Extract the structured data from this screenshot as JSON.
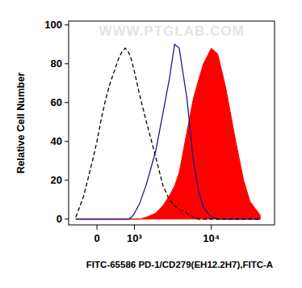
{
  "chart_data": {
    "type": "area",
    "xlabel": "FITC-65586 PD-1/CD279(EH12.2H7),FITC-A",
    "ylabel": "Relative Cell Number",
    "annotation": "WWW.PTGLAB.COM",
    "log": "x",
    "xlim": [
      -700,
      60000
    ],
    "ylim": [
      -3,
      102
    ],
    "xticks": [
      0,
      {
        "value": 1000,
        "label": "10³"
      },
      {
        "value": 10000,
        "label": "10⁴"
      }
    ],
    "yticks": [
      0,
      20,
      40,
      60,
      80,
      100
    ],
    "x": [
      -500,
      -300,
      -100,
      0,
      100,
      200,
      300,
      400,
      500,
      600,
      700,
      800,
      900,
      1000,
      1200,
      1500,
      2000,
      2500,
      3000,
      3500,
      4000,
      5000,
      6000,
      7000,
      8000,
      10000,
      12000,
      15000,
      20000,
      25000,
      30000,
      40000
    ],
    "series": [
      {
        "type": "area",
        "color": "#ff0000",
        "values": [
          0,
          0,
          0,
          0,
          0,
          0,
          0,
          0,
          0,
          0,
          0,
          0,
          0,
          0,
          0,
          1,
          3,
          7,
          12,
          17,
          24,
          45,
          62,
          72,
          80,
          88,
          85,
          68,
          40,
          20,
          9,
          2
        ]
      },
      {
        "type": "line",
        "color": "#1a1a8c",
        "line_style": "solid",
        "values": [
          0,
          0,
          0,
          0,
          0,
          0,
          0,
          0,
          0,
          0,
          0,
          0,
          1,
          3,
          8,
          18,
          35,
          55,
          72,
          90,
          88,
          62,
          30,
          14,
          6,
          1,
          0,
          0,
          0,
          0,
          0,
          0
        ]
      },
      {
        "type": "line",
        "color": "#000000",
        "line_style": "dashed",
        "values": [
          1,
          12,
          30,
          40,
          52,
          62,
          70,
          76,
          82,
          86,
          88,
          86,
          82,
          76,
          64,
          50,
          32,
          17,
          10,
          7,
          5,
          3,
          1,
          0,
          0,
          0,
          0,
          0,
          0,
          0,
          0,
          0
        ]
      }
    ]
  }
}
